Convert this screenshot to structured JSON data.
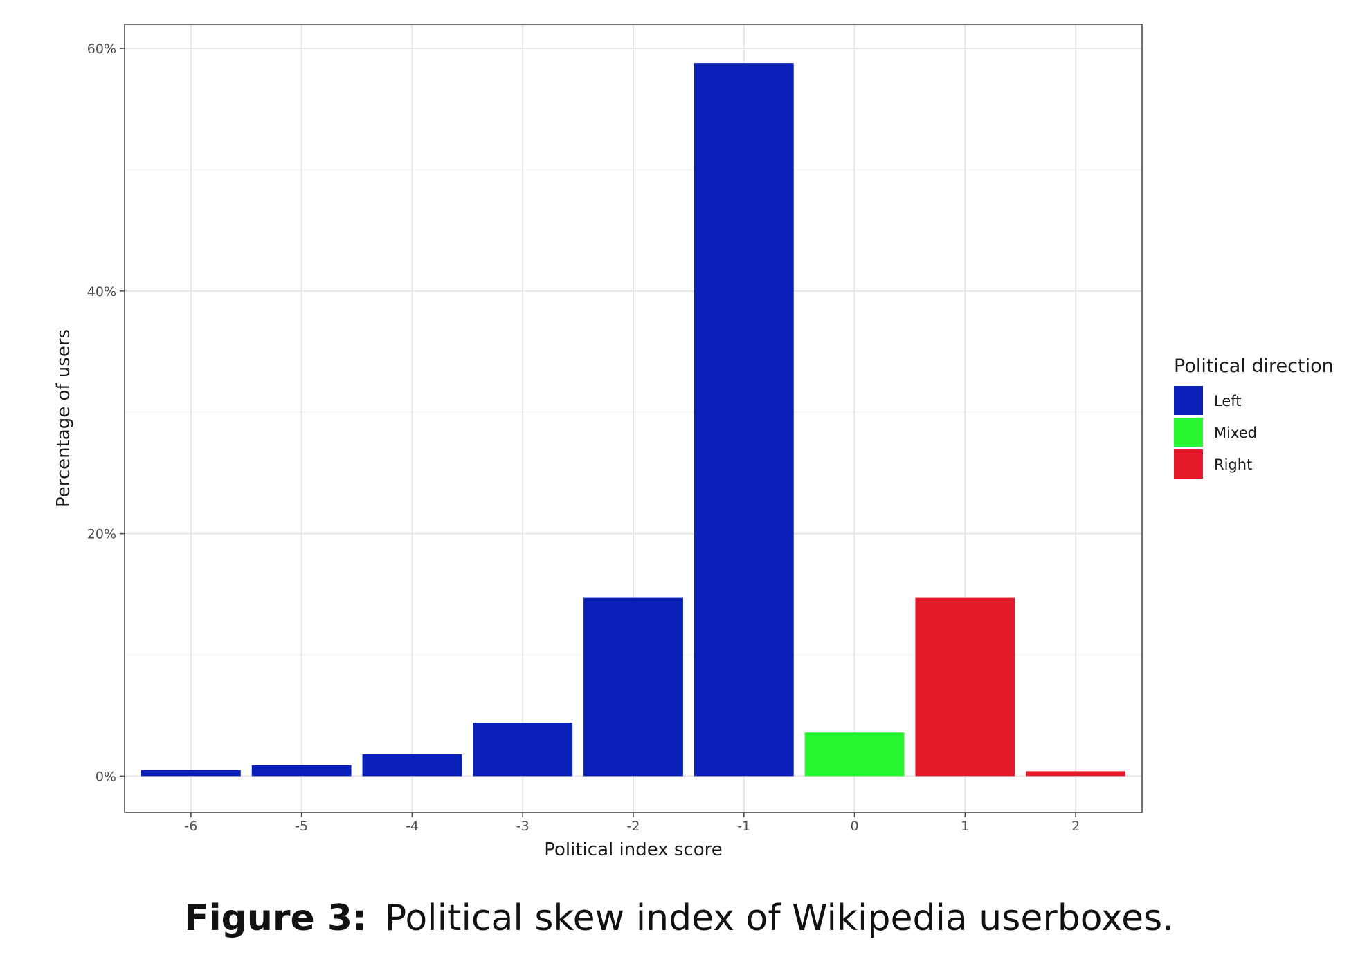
{
  "chart_data": {
    "type": "bar",
    "xlabel": "Political index score",
    "ylabel": "Percentage of users",
    "categories": [
      "-6",
      "-5",
      "-4",
      "-3",
      "-2",
      "-1",
      "0",
      "1",
      "2"
    ],
    "values": [
      0.5,
      0.9,
      1.8,
      4.4,
      14.7,
      58.8,
      3.6,
      14.7,
      0.4
    ],
    "groups": [
      "Left",
      "Left",
      "Left",
      "Left",
      "Left",
      "Left",
      "Mixed",
      "Right",
      "Right"
    ],
    "y_ticks": [
      0,
      20,
      40,
      60
    ],
    "y_tick_labels": [
      "0%",
      "20%",
      "40%",
      "60%"
    ],
    "ylim": [
      -3,
      62
    ],
    "grid": true,
    "legend": {
      "title": "Political direction",
      "placement": "right",
      "entries": [
        {
          "label": "Left",
          "color": "#0a1fb8"
        },
        {
          "label": "Mixed",
          "color": "#27f52f"
        },
        {
          "label": "Right",
          "color": "#e41a2a"
        }
      ]
    }
  },
  "caption": {
    "label": "Figure 3:",
    "text": "Political skew index of Wikipedia userboxes."
  }
}
